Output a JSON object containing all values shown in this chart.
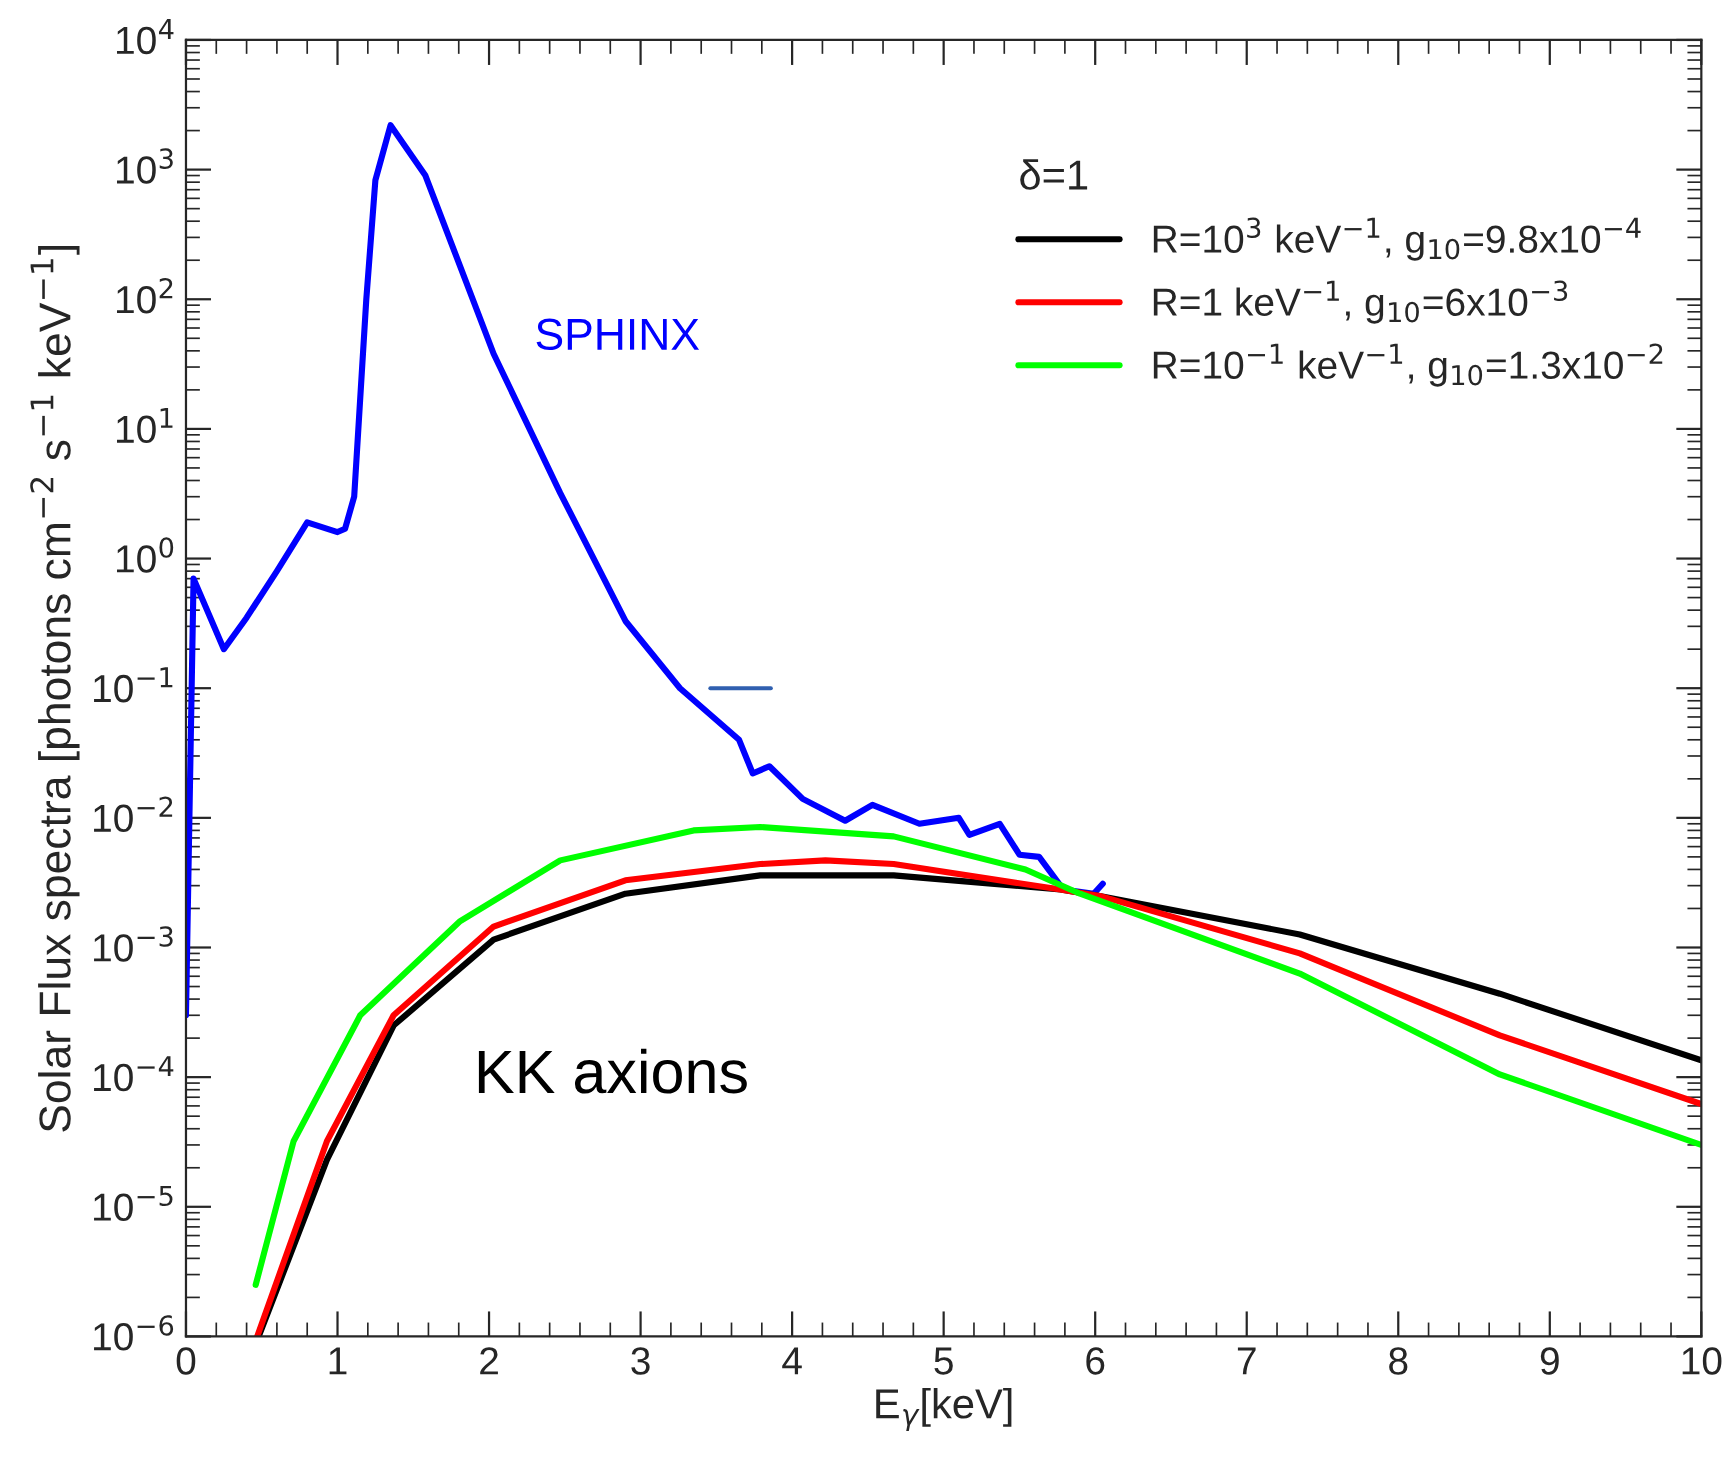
{
  "chart_data": {
    "type": "line",
    "xlabel": "E$_{γ}$[keV]",
    "ylabel": "Solar Flux spectra [photons cm$^{−2}$ s$^{−1}$ keV$^{−1}$]",
    "log": "y",
    "xlim": [
      0,
      10
    ],
    "ylim": [
      1e-06,
      10000
    ],
    "xticks": [
      0,
      1,
      2,
      3,
      4,
      5,
      6,
      7,
      8,
      9,
      10
    ],
    "yticks": [
      {
        "value": 1e-06,
        "label": "10$^{−6}$"
      },
      {
        "value": 1e-05,
        "label": "10$^{−5}$"
      },
      {
        "value": 0.0001,
        "label": "10$^{−4}$"
      },
      {
        "value": 0.001,
        "label": "10$^{−3}$"
      },
      {
        "value": 0.01,
        "label": "10$^{−2}$"
      },
      {
        "value": 0.1,
        "label": "10$^{−1}$"
      },
      {
        "value": 1,
        "label": "10$^{0}$"
      },
      {
        "value": 10,
        "label": "10$^{1}$"
      },
      {
        "value": 100,
        "label": "10$^{2}$"
      },
      {
        "value": 1000,
        "label": "10$^{3}$"
      },
      {
        "value": 10000,
        "label": "10$^{4}$"
      }
    ],
    "grid": false,
    "legend": "top right",
    "legend_title": "δ=1",
    "annotations": [
      "SPHINX",
      "KK axions"
    ],
    "series": [
      {
        "color": "#0000ff",
        "x": [
          0.0,
          0.05,
          0.25,
          0.4,
          0.6,
          0.8,
          1.0,
          1.05,
          1.11,
          1.19,
          1.25,
          1.35,
          1.58,
          2.03,
          2.47,
          2.9,
          3.26,
          3.65,
          3.74,
          3.85,
          4.07,
          4.35,
          4.53,
          4.84,
          5.1,
          5.17,
          5.37,
          5.5,
          5.63,
          5.79,
          5.99,
          6.05
        ],
        "values": [
          0.0003,
          0.7,
          0.2,
          0.35,
          0.8,
          1.9,
          1.6,
          1.7,
          3,
          100,
          830,
          2200,
          900,
          38,
          3.2,
          0.33,
          0.1,
          0.04,
          0.022,
          0.025,
          0.014,
          0.0095,
          0.0126,
          0.009,
          0.01,
          0.0074,
          0.009,
          0.0052,
          0.005,
          0.0028,
          0.0026,
          0.0031
        ]
      },
      {
        "color": "#3060b0",
        "x": [
          3.46,
          3.86
        ],
        "values": [
          0.1,
          0.1
        ]
      },
      {
        "name": "R=10$^{3}$ keV$^{−1}$, g$_{10}$=9.8x10$^{−4}$",
        "color": "#000000",
        "x": [
          0.48,
          0.93,
          1.37,
          2.03,
          2.9,
          3.79,
          4.67,
          5.77,
          6.03,
          7.35,
          8.67,
          10
        ],
        "values": [
          1e-06,
          2.3e-05,
          0.00025,
          0.00115,
          0.0026,
          0.0036,
          0.0036,
          0.0028,
          0.0025,
          0.00126,
          0.00044,
          0.000135
        ]
      },
      {
        "name": "R=1 keV$^{−1}$, g$_{10}$=6x10$^{−3}$",
        "color": "#ff0000",
        "x": [
          0.47,
          0.93,
          1.37,
          2.03,
          2.9,
          3.79,
          4.22,
          4.67,
          5.77,
          6.03,
          7.35,
          8.67,
          10
        ],
        "values": [
          1e-06,
          3.2e-05,
          0.0003,
          0.00145,
          0.0033,
          0.0044,
          0.0047,
          0.0044,
          0.0028,
          0.0025,
          0.0009,
          0.00021,
          6.2e-05
        ]
      },
      {
        "name": "R=10$^{−1}$ keV$^{−1}$, g$_{10}$=1.3x10$^{−2}$",
        "color": "#00ff00",
        "x": [
          0.46,
          0.71,
          1.15,
          1.81,
          2.47,
          3.35,
          3.79,
          4.67,
          5.54,
          5.9,
          7.35,
          8.67,
          10
        ],
        "values": [
          2.5e-06,
          3.2e-05,
          0.0003,
          0.0016,
          0.0047,
          0.008,
          0.0085,
          0.0072,
          0.004,
          0.0026,
          0.00063,
          0.000105,
          3e-05
        ]
      }
    ]
  }
}
